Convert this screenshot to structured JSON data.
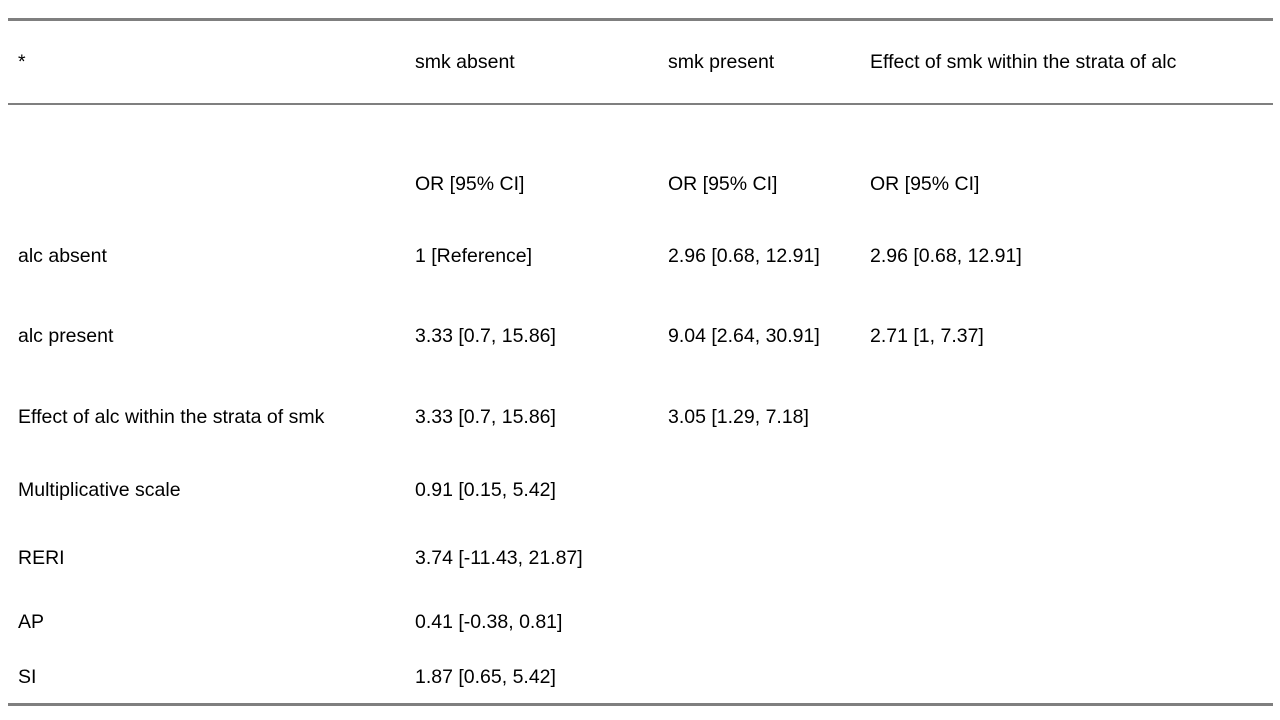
{
  "page": {
    "background_color": "#ffffff",
    "text_color": "#000000",
    "rule_color": "#7f7f7f"
  },
  "table": {
    "header": [
      "*",
      "smk absent",
      "smk present",
      "Effect of smk within the strata of alc"
    ],
    "rows": [
      [
        "",
        "OR [95% CI]",
        "OR [95% CI]",
        "OR [95% CI]"
      ],
      [
        "alc absent",
        "1 [Reference]",
        "2.96 [0.68, 12.91]",
        "2.96 [0.68, 12.91]"
      ],
      [
        "alc present",
        "3.33 [0.7, 15.86]",
        "9.04 [2.64, 30.91]",
        "2.71 [1, 7.37]"
      ],
      [
        "Effect of alc within the strata of smk",
        "3.33 [0.7, 15.86]",
        "3.05 [1.29, 7.18]",
        ""
      ],
      [
        "Multiplicative scale",
        "0.91 [0.15, 5.42]",
        "",
        ""
      ],
      [
        "RERI",
        "3.74 [-11.43, 21.87]",
        "",
        ""
      ],
      [
        "AP",
        "0.41 [-0.38, 0.81]",
        "",
        ""
      ],
      [
        "SI",
        "1.87 [0.65, 5.42]",
        "",
        ""
      ]
    ]
  }
}
